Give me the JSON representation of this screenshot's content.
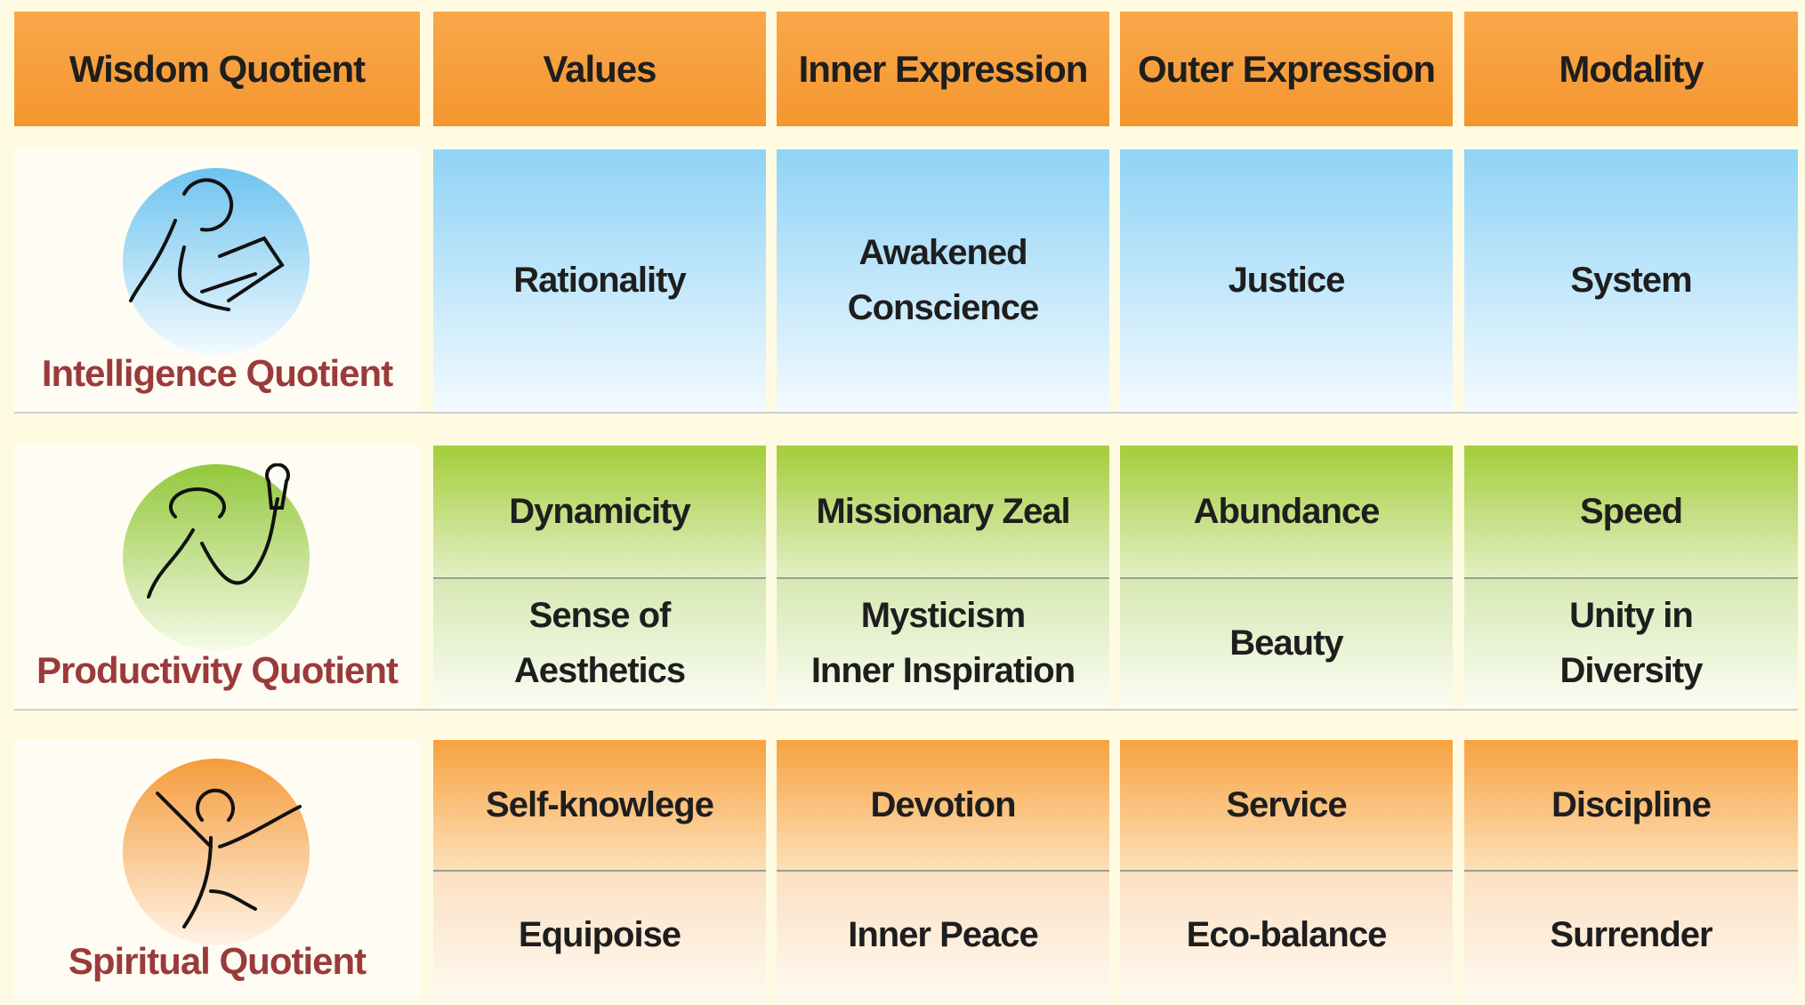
{
  "header": [
    "Wisdom Quotient",
    "Values",
    "Inner Expression",
    "Outer Expression",
    "Modality"
  ],
  "rows": [
    {
      "label": "Intelligence Quotient",
      "tiers": [
        [
          [
            "Rationality"
          ],
          [
            "Awakened",
            "Conscience"
          ],
          [
            "Justice"
          ],
          [
            "System"
          ]
        ]
      ]
    },
    {
      "label": "Productivity Quotient",
      "tiers": [
        [
          [
            "Dynamicity"
          ],
          [
            "Missionary Zeal"
          ],
          [
            "Abundance"
          ],
          [
            "Speed"
          ]
        ],
        [
          [
            "Sense of",
            "Aesthetics"
          ],
          [
            "Mysticism",
            "Inner Inspiration"
          ],
          [
            "Beauty"
          ],
          [
            "Unity in",
            "Diversity"
          ]
        ]
      ]
    },
    {
      "label": "Spiritual Quotient",
      "tiers": [
        [
          [
            "Self-knowlege"
          ],
          [
            "Devotion"
          ],
          [
            "Service"
          ],
          [
            "Discipline"
          ]
        ],
        [
          [
            "Equipoise"
          ],
          [
            "Inner Peace"
          ],
          [
            "Eco-balance"
          ],
          [
            "Surrender"
          ]
        ]
      ]
    }
  ]
}
